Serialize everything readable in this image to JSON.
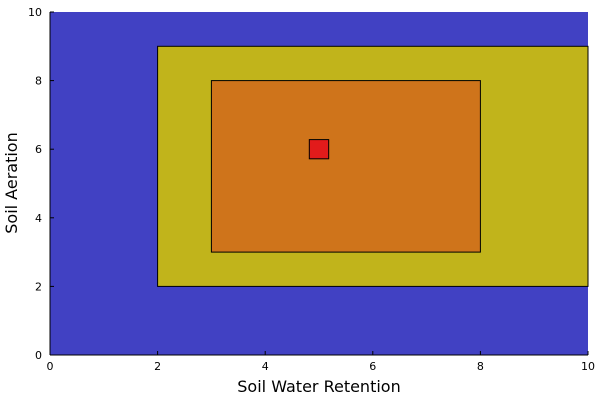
{
  "chart_data": {
    "type": "rectangles",
    "xlabel": "Soil Water Retention",
    "ylabel": "Soil Aeration",
    "xlim": [
      0,
      10
    ],
    "ylim": [
      0,
      10
    ],
    "xticks": [
      0,
      2,
      4,
      6,
      8,
      10
    ],
    "yticks": [
      0,
      2,
      4,
      6,
      8,
      10
    ],
    "grid": false,
    "legend": "none",
    "rects": [
      {
        "x": [
          0,
          10
        ],
        "y": [
          0,
          10
        ],
        "color": "#4141c3",
        "outline": false
      },
      {
        "x": [
          2,
          10
        ],
        "y": [
          2,
          9
        ],
        "color": "#c1b41b",
        "outline": true
      },
      {
        "x": [
          3,
          8
        ],
        "y": [
          3,
          8
        ],
        "color": "#cf741b",
        "outline": true
      },
      {
        "x": [
          4.82,
          5.18
        ],
        "y": [
          5.72,
          6.28
        ],
        "color": "#e21b1b",
        "outline": true
      }
    ]
  }
}
